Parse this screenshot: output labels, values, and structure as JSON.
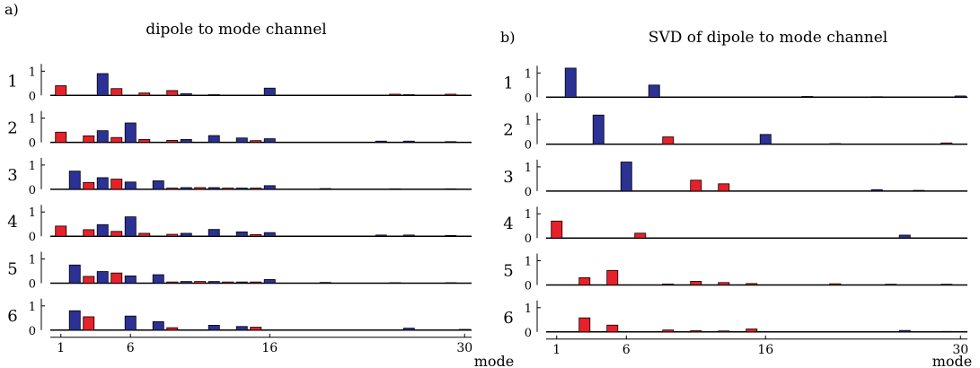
{
  "colors": {
    "odd": "#e8202a",
    "even": "#2c3194",
    "edge": "#000000",
    "zero": "#000000"
  },
  "chart_data": [
    {
      "type": "bar",
      "panel_label": "a)",
      "title": "dipole to mode channel",
      "xlabel": "mode",
      "x_ticks": [
        1,
        6,
        16,
        30
      ],
      "y_ticks": [
        0,
        1
      ],
      "ylim": [
        0,
        1.2
      ],
      "categories": [
        1,
        2,
        3,
        4,
        5,
        6,
        7,
        8,
        9,
        10,
        11,
        12,
        13,
        14,
        15,
        16,
        17,
        18,
        19,
        20,
        21,
        22,
        23,
        24,
        25,
        26,
        27,
        28,
        29,
        30
      ],
      "series": [
        {
          "name": "1",
          "values": [
            0.4,
            0,
            0,
            0.9,
            0.28,
            0,
            0.1,
            0,
            0.2,
            0.07,
            0,
            0.03,
            0,
            0,
            0,
            0.3,
            0,
            0,
            0,
            0,
            0,
            0,
            0,
            0,
            0.05,
            0.03,
            0,
            0,
            0.05,
            0
          ]
        },
        {
          "name": "2",
          "values": [
            0.42,
            0,
            0.27,
            0.48,
            0.2,
            0.8,
            0.12,
            0,
            0.08,
            0.12,
            0,
            0.28,
            0,
            0.18,
            0.07,
            0.15,
            0,
            0,
            0,
            0,
            0,
            0,
            0,
            0.05,
            0,
            0.05,
            0,
            0,
            0.03,
            0
          ]
        },
        {
          "name": "3",
          "values": [
            0,
            0.75,
            0.28,
            0.48,
            0.42,
            0.3,
            0,
            0.35,
            0.05,
            0.07,
            0.07,
            0.07,
            0.05,
            0.05,
            0.05,
            0.15,
            0,
            0,
            0,
            0.03,
            0,
            0,
            0,
            0,
            0.02,
            0,
            0,
            0,
            0.02,
            0
          ]
        },
        {
          "name": "4",
          "values": [
            0.42,
            0,
            0.27,
            0.48,
            0.2,
            0.8,
            0.12,
            0,
            0.08,
            0.12,
            0,
            0.28,
            0,
            0.18,
            0.07,
            0.15,
            0,
            0,
            0,
            0,
            0,
            0,
            0,
            0.05,
            0,
            0.05,
            0,
            0,
            0.03,
            0
          ]
        },
        {
          "name": "5",
          "values": [
            0,
            0.75,
            0.28,
            0.48,
            0.42,
            0.3,
            0,
            0.35,
            0.05,
            0.07,
            0.07,
            0.07,
            0.05,
            0.05,
            0.05,
            0.15,
            0,
            0,
            0,
            0.03,
            0,
            0,
            0,
            0,
            0.02,
            0,
            0,
            0,
            0.02,
            0
          ]
        },
        {
          "name": "6",
          "values": [
            0,
            0.8,
            0.55,
            0,
            0,
            0.58,
            0,
            0.35,
            0.1,
            0,
            0,
            0.2,
            0,
            0.15,
            0.12,
            0,
            0,
            0,
            0,
            0,
            0,
            0,
            0,
            0,
            0,
            0.08,
            0,
            0,
            0,
            0.03
          ]
        }
      ]
    },
    {
      "type": "bar",
      "panel_label": "b)",
      "title": "SVD of dipole to mode channel",
      "xlabel": "mode",
      "x_ticks": [
        1,
        6,
        16,
        30
      ],
      "y_ticks": [
        0,
        1
      ],
      "ylim": [
        0,
        1.2
      ],
      "categories": [
        1,
        2,
        3,
        4,
        5,
        6,
        7,
        8,
        9,
        10,
        11,
        12,
        13,
        14,
        15,
        16,
        17,
        18,
        19,
        20,
        21,
        22,
        23,
        24,
        25,
        26,
        27,
        28,
        29,
        30
      ],
      "series": [
        {
          "name": "1",
          "values": [
            0,
            1.2,
            0,
            0,
            0,
            0,
            0,
            0.5,
            0,
            0,
            0,
            0,
            0,
            0,
            0,
            0,
            0,
            0,
            0.03,
            0,
            0,
            0,
            0,
            0.02,
            0,
            0,
            0,
            0,
            0,
            0.05
          ]
        },
        {
          "name": "2",
          "values": [
            0,
            0,
            0,
            1.2,
            0,
            0,
            0,
            0,
            0.3,
            0,
            0,
            0,
            0,
            0,
            0,
            0.4,
            0,
            0,
            0,
            0,
            0.02,
            0,
            0,
            0,
            0,
            0,
            0,
            0,
            0.05,
            0
          ]
        },
        {
          "name": "3",
          "values": [
            0,
            0,
            0,
            0,
            0,
            1.2,
            0,
            0,
            0,
            0,
            0.45,
            0,
            0.3,
            0,
            0,
            0,
            0,
            0,
            0,
            0,
            0,
            0,
            0,
            0.06,
            0,
            0,
            0.03,
            0,
            0,
            0
          ]
        },
        {
          "name": "4",
          "values": [
            0.7,
            0,
            0,
            0,
            0,
            0,
            0.2,
            0,
            0,
            0,
            0,
            0,
            0,
            0,
            0,
            0,
            0,
            0,
            0,
            0,
            0,
            0,
            0,
            0,
            0,
            0.12,
            0,
            0,
            0,
            0
          ]
        },
        {
          "name": "5",
          "values": [
            0,
            0,
            0.3,
            0,
            0.6,
            0,
            0,
            0,
            0.04,
            0,
            0.15,
            0,
            0.1,
            0,
            0.06,
            0,
            0,
            0,
            0,
            0,
            0.05,
            0,
            0,
            0,
            0.03,
            0,
            0,
            0,
            0.03,
            0
          ]
        },
        {
          "name": "6",
          "values": [
            0,
            0,
            0.58,
            0,
            0.28,
            0,
            0,
            0,
            0.08,
            0,
            0.05,
            0,
            0.04,
            0,
            0.12,
            0,
            0,
            0,
            0,
            0,
            0,
            0,
            0,
            0,
            0,
            0.06,
            0,
            0,
            0.02,
            0
          ]
        }
      ]
    }
  ]
}
